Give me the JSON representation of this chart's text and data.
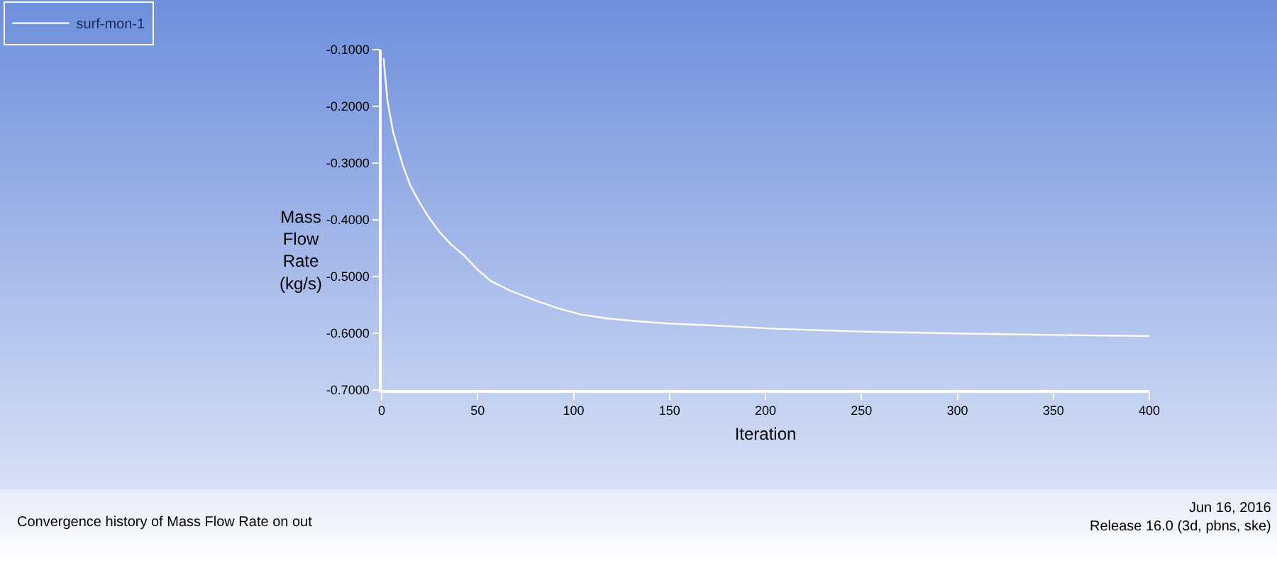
{
  "chart_data": {
    "type": "line",
    "xlabel": "Iteration",
    "ylabel": "Mass Flow Rate (kg/s)",
    "xlim": [
      0,
      400
    ],
    "xticks": [
      0,
      50,
      100,
      150,
      200,
      250,
      300,
      350,
      400
    ],
    "ylim": [
      -0.7,
      -0.1
    ],
    "yticks": [
      {
        "value": -0.7,
        "label": "-0.7000"
      },
      {
        "value": -0.6,
        "label": "-0.6000"
      },
      {
        "value": -0.5,
        "label": "-0.5000"
      },
      {
        "value": -0.4,
        "label": "-0.4000"
      },
      {
        "value": -0.3,
        "label": "-0.3000"
      },
      {
        "value": -0.2,
        "label": "-0.2000"
      },
      {
        "value": -0.1,
        "label": "-0.1000"
      }
    ],
    "x": [
      1,
      3,
      6,
      11,
      15,
      20,
      25,
      30,
      36,
      43,
      50,
      57,
      67,
      80,
      92,
      104,
      118,
      134,
      150,
      171,
      205,
      250,
      294,
      350,
      400
    ],
    "series": [
      {
        "name": "surf-mon-1",
        "color": "#ffffff",
        "values": [
          -0.115,
          -0.19,
          -0.246,
          -0.304,
          -0.34,
          -0.371,
          -0.398,
          -0.421,
          -0.443,
          -0.463,
          -0.488,
          -0.508,
          -0.525,
          -0.542,
          -0.556,
          -0.567,
          -0.574,
          -0.579,
          -0.583,
          -0.586,
          -0.592,
          -0.597,
          -0.6,
          -0.603,
          -0.605
        ]
      }
    ],
    "legend": "top left",
    "grid": false,
    "marker": "none",
    "line_style": "solid",
    "annotations": [
      "Convergence history of Mass Flow Rate on out",
      "Jun 16, 2016",
      "Release 16.0 (3d, pbns, ske)"
    ]
  }
}
